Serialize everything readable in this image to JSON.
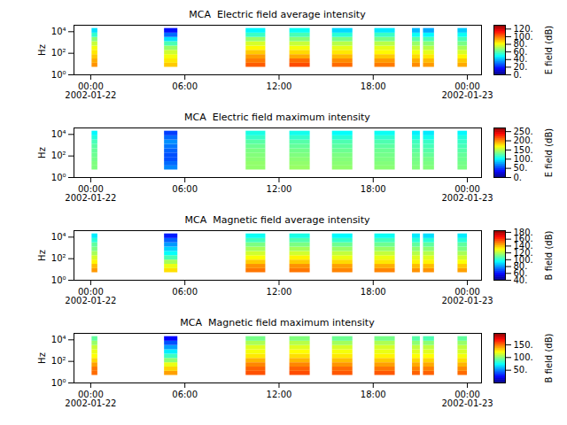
{
  "chart_data": [
    {
      "type": "heatmap",
      "title": "MCA  Electric field average intensity",
      "y_label": "Hz",
      "colorbar_label": "E field (dB)",
      "log": "y",
      "xlim": [
        "2002-01-21T22:56",
        "2002-01-23T00:54"
      ],
      "xticks": [
        {
          "value": "2002-01-22T00:00",
          "label": "00:00\n2002-01-22"
        },
        {
          "value": "2002-01-22T06:00",
          "label": "06:00"
        },
        {
          "value": "2002-01-22T12:00",
          "label": "12:00"
        },
        {
          "value": "2002-01-22T18:00",
          "label": "18:00"
        },
        {
          "value": "2002-01-23T00:00",
          "label": "00:00\n2002-01-23"
        }
      ],
      "ylim": [
        1,
        40000
      ],
      "yticks": [
        {
          "value": 1,
          "label": "10⁰"
        },
        {
          "value": 100,
          "label": "10²"
        },
        {
          "value": 10000,
          "label": "10⁴"
        }
      ],
      "time_bins": [
        [
          "2002-01-22T00:05",
          "2002-01-22T00:27"
        ],
        [
          "2002-01-22T04:42",
          "2002-01-22T05:33"
        ],
        [
          "2002-01-22T09:54",
          "2002-01-22T11:09"
        ],
        [
          "2002-01-22T12:41",
          "2002-01-22T13:59"
        ],
        [
          "2002-01-22T15:24",
          "2002-01-22T16:42"
        ],
        [
          "2002-01-22T18:06",
          "2002-01-22T19:24"
        ],
        [
          "2002-01-22T20:30",
          "2002-01-22T21:00"
        ],
        [
          "2002-01-22T21:12",
          "2002-01-22T21:54"
        ],
        [
          "2002-01-22T23:24",
          "2002-01-23T00:00"
        ]
      ],
      "frequency_bins": [
        5,
        12,
        30,
        75,
        190,
        470,
        1200,
        3000,
        7500,
        20000
      ],
      "cells": [
        [
          95,
          92,
          88,
          84,
          80,
          74,
          66,
          55,
          45
        ],
        [
          88,
          84,
          80,
          75,
          68,
          58,
          45,
          30,
          18
        ],
        [
          102,
          98,
          94,
          88,
          82,
          76,
          68,
          56,
          48
        ],
        [
          104,
          100,
          92,
          86,
          80,
          74,
          66,
          58,
          50
        ],
        [
          100,
          96,
          90,
          84,
          78,
          72,
          64,
          54,
          44
        ],
        [
          98,
          94,
          88,
          82,
          78,
          72,
          64,
          56,
          46
        ],
        [
          96,
          92,
          86,
          80,
          74,
          68,
          60,
          50,
          40
        ],
        [
          94,
          90,
          84,
          78,
          72,
          66,
          58,
          48,
          38
        ],
        [
          92,
          88,
          82,
          76,
          70,
          64,
          58,
          50,
          42
        ]
      ],
      "colorbar_range": [
        0,
        130
      ],
      "colorbar_ticks": [
        {
          "value": 0,
          "label": "0."
        },
        {
          "value": 20,
          "label": "20."
        },
        {
          "value": 40,
          "label": "40."
        },
        {
          "value": 60,
          "label": "60."
        },
        {
          "value": 80,
          "label": "80."
        },
        {
          "value": 100,
          "label": "100."
        },
        {
          "value": 120,
          "label": "120."
        }
      ]
    },
    {
      "type": "heatmap",
      "title": "MCA  Electric field maximum intensity",
      "y_label": "Hz",
      "colorbar_label": "E field (dB)",
      "log": "y",
      "xlim": [
        "2002-01-21T22:56",
        "2002-01-23T00:54"
      ],
      "xticks": [
        {
          "value": "2002-01-22T00:00",
          "label": "00:00\n2002-01-22"
        },
        {
          "value": "2002-01-22T06:00",
          "label": "06:00"
        },
        {
          "value": "2002-01-22T12:00",
          "label": "12:00"
        },
        {
          "value": "2002-01-22T18:00",
          "label": "18:00"
        },
        {
          "value": "2002-01-23T00:00",
          "label": "00:00\n2002-01-23"
        }
      ],
      "ylim": [
        1,
        40000
      ],
      "yticks": [
        {
          "value": 1,
          "label": "10⁰"
        },
        {
          "value": 100,
          "label": "10²"
        },
        {
          "value": 10000,
          "label": "10⁴"
        }
      ],
      "time_bins": [
        [
          "2002-01-22T00:05",
          "2002-01-22T00:27"
        ],
        [
          "2002-01-22T04:42",
          "2002-01-22T05:33"
        ],
        [
          "2002-01-22T09:54",
          "2002-01-22T11:09"
        ],
        [
          "2002-01-22T12:41",
          "2002-01-22T13:59"
        ],
        [
          "2002-01-22T15:24",
          "2002-01-22T16:42"
        ],
        [
          "2002-01-22T18:06",
          "2002-01-22T19:24"
        ],
        [
          "2002-01-22T20:30",
          "2002-01-22T21:00"
        ],
        [
          "2002-01-22T21:12",
          "2002-01-22T21:54"
        ],
        [
          "2002-01-22T23:24",
          "2002-01-23T00:00"
        ]
      ],
      "frequency_bins": [
        5,
        12,
        30,
        75,
        190,
        470,
        1200,
        3000,
        7500,
        20000
      ],
      "cells": [
        [
          135,
          135,
          132,
          130,
          128,
          125,
          120,
          110,
          100
        ],
        [
          70,
          62,
          55,
          55,
          60,
          65,
          72,
          62,
          50
        ],
        [
          140,
          140,
          138,
          136,
          134,
          130,
          125,
          116,
          108
        ],
        [
          142,
          140,
          138,
          135,
          132,
          128,
          124,
          115,
          106
        ],
        [
          140,
          138,
          136,
          134,
          130,
          126,
          122,
          112,
          102
        ],
        [
          138,
          136,
          134,
          132,
          130,
          126,
          122,
          114,
          104
        ],
        [
          136,
          134,
          132,
          130,
          126,
          122,
          118,
          108,
          98
        ],
        [
          136,
          134,
          132,
          128,
          124,
          120,
          116,
          106,
          96
        ],
        [
          134,
          132,
          130,
          128,
          124,
          120,
          116,
          110,
          100
        ]
      ],
      "colorbar_range": [
        0,
        270
      ],
      "colorbar_ticks": [
        {
          "value": 0,
          "label": "0."
        },
        {
          "value": 50,
          "label": "50."
        },
        {
          "value": 100,
          "label": "100."
        },
        {
          "value": 150,
          "label": "150."
        },
        {
          "value": 200,
          "label": "200."
        },
        {
          "value": 250,
          "label": "250."
        }
      ]
    },
    {
      "type": "heatmap",
      "title": "MCA  Magnetic field average intensity",
      "y_label": "Hz",
      "colorbar_label": "B field (dB)",
      "log": "y",
      "xlim": [
        "2002-01-21T22:56",
        "2002-01-23T00:54"
      ],
      "xticks": [
        {
          "value": "2002-01-22T00:00",
          "label": "00:00\n2002-01-22"
        },
        {
          "value": "2002-01-22T06:00",
          "label": "06:00"
        },
        {
          "value": "2002-01-22T12:00",
          "label": "12:00"
        },
        {
          "value": "2002-01-22T18:00",
          "label": "18:00"
        },
        {
          "value": "2002-01-23T00:00",
          "label": "00:00\n2002-01-23"
        }
      ],
      "ylim": [
        1,
        40000
      ],
      "yticks": [
        {
          "value": 1,
          "label": "10⁰"
        },
        {
          "value": 100,
          "label": "10²"
        },
        {
          "value": 10000,
          "label": "10⁴"
        }
      ],
      "time_bins": [
        [
          "2002-01-22T00:05",
          "2002-01-22T00:27"
        ],
        [
          "2002-01-22T04:42",
          "2002-01-22T05:33"
        ],
        [
          "2002-01-22T09:54",
          "2002-01-22T11:09"
        ],
        [
          "2002-01-22T12:41",
          "2002-01-22T13:59"
        ],
        [
          "2002-01-22T15:24",
          "2002-01-22T16:42"
        ],
        [
          "2002-01-22T18:06",
          "2002-01-22T19:24"
        ],
        [
          "2002-01-22T20:30",
          "2002-01-22T21:00"
        ],
        [
          "2002-01-22T21:12",
          "2002-01-22T21:54"
        ],
        [
          "2002-01-22T23:24",
          "2002-01-23T00:00"
        ]
      ],
      "frequency_bins": [
        5,
        12,
        30,
        75,
        190,
        470,
        1200,
        3000,
        7500,
        20000
      ],
      "cells": [
        [
          145,
          140,
          132,
          125,
          118,
          112,
          108,
          100,
          92
        ],
        [
          135,
          128,
          118,
          105,
          95,
          88,
          80,
          72,
          62
        ],
        [
          150,
          146,
          138,
          130,
          124,
          118,
          112,
          104,
          96
        ],
        [
          150,
          146,
          138,
          132,
          124,
          118,
          112,
          106,
          98
        ],
        [
          148,
          144,
          136,
          128,
          122,
          116,
          110,
          102,
          94
        ],
        [
          148,
          142,
          134,
          128,
          122,
          116,
          110,
          104,
          96
        ],
        [
          146,
          140,
          132,
          126,
          120,
          114,
          108,
          100,
          92
        ],
        [
          146,
          140,
          132,
          126,
          120,
          114,
          108,
          100,
          90
        ],
        [
          144,
          138,
          130,
          124,
          118,
          112,
          108,
          100,
          92
        ]
      ],
      "colorbar_range": [
        40,
        185
      ],
      "colorbar_ticks": [
        {
          "value": 40,
          "label": "40."
        },
        {
          "value": 60,
          "label": "60."
        },
        {
          "value": 80,
          "label": "80."
        },
        {
          "value": 100,
          "label": "100."
        },
        {
          "value": 120,
          "label": "120."
        },
        {
          "value": 140,
          "label": "140."
        },
        {
          "value": 160,
          "label": "160."
        },
        {
          "value": 180,
          "label": "180."
        }
      ]
    },
    {
      "type": "heatmap",
      "title": "MCA  Magnetic field maximum intensity",
      "y_label": "Hz",
      "colorbar_label": "B field (dB)",
      "log": "y",
      "xlim": [
        "2002-01-21T22:56",
        "2002-01-23T00:54"
      ],
      "xticks": [
        {
          "value": "2002-01-22T00:00",
          "label": "00:00\n2002-01-22"
        },
        {
          "value": "2002-01-22T06:00",
          "label": "06:00"
        },
        {
          "value": "2002-01-22T12:00",
          "label": "12:00"
        },
        {
          "value": "2002-01-22T18:00",
          "label": "18:00"
        },
        {
          "value": "2002-01-23T00:00",
          "label": "00:00\n2002-01-23"
        }
      ],
      "ylim": [
        1,
        40000
      ],
      "yticks": [
        {
          "value": 1,
          "label": "10⁰"
        },
        {
          "value": 100,
          "label": "10²"
        },
        {
          "value": 10000,
          "label": "10⁴"
        }
      ],
      "time_bins": [
        [
          "2002-01-22T00:05",
          "2002-01-22T00:27"
        ],
        [
          "2002-01-22T04:42",
          "2002-01-22T05:33"
        ],
        [
          "2002-01-22T09:54",
          "2002-01-22T11:09"
        ],
        [
          "2002-01-22T12:41",
          "2002-01-22T13:59"
        ],
        [
          "2002-01-22T15:24",
          "2002-01-22T16:42"
        ],
        [
          "2002-01-22T18:06",
          "2002-01-22T19:24"
        ],
        [
          "2002-01-22T20:30",
          "2002-01-22T21:00"
        ],
        [
          "2002-01-22T21:12",
          "2002-01-22T21:54"
        ],
        [
          "2002-01-22T23:24",
          "2002-01-23T00:00"
        ]
      ],
      "frequency_bins": [
        5,
        12,
        30,
        75,
        190,
        470,
        1200,
        3000,
        7500,
        20000
      ],
      "cells": [
        [
          150,
          148,
          140,
          130,
          122,
          118,
          112,
          102,
          92
        ],
        [
          140,
          130,
          118,
          100,
          85,
          70,
          55,
          40,
          25
        ],
        [
          155,
          152,
          145,
          136,
          126,
          120,
          116,
          106,
          96
        ],
        [
          156,
          152,
          145,
          136,
          128,
          122,
          116,
          108,
          98
        ],
        [
          154,
          150,
          142,
          134,
          126,
          120,
          114,
          104,
          94
        ],
        [
          154,
          148,
          140,
          132,
          124,
          118,
          114,
          106,
          96
        ],
        [
          152,
          146,
          138,
          130,
          122,
          116,
          110,
          100,
          90
        ],
        [
          152,
          146,
          138,
          130,
          122,
          116,
          110,
          100,
          88
        ],
        [
          150,
          144,
          136,
          128,
          120,
          114,
          110,
          102,
          92
        ]
      ],
      "colorbar_range": [
        0,
        195
      ],
      "colorbar_ticks": [
        {
          "value": 50,
          "label": "50."
        },
        {
          "value": 100,
          "label": "100."
        },
        {
          "value": 150,
          "label": "150."
        }
      ]
    }
  ]
}
